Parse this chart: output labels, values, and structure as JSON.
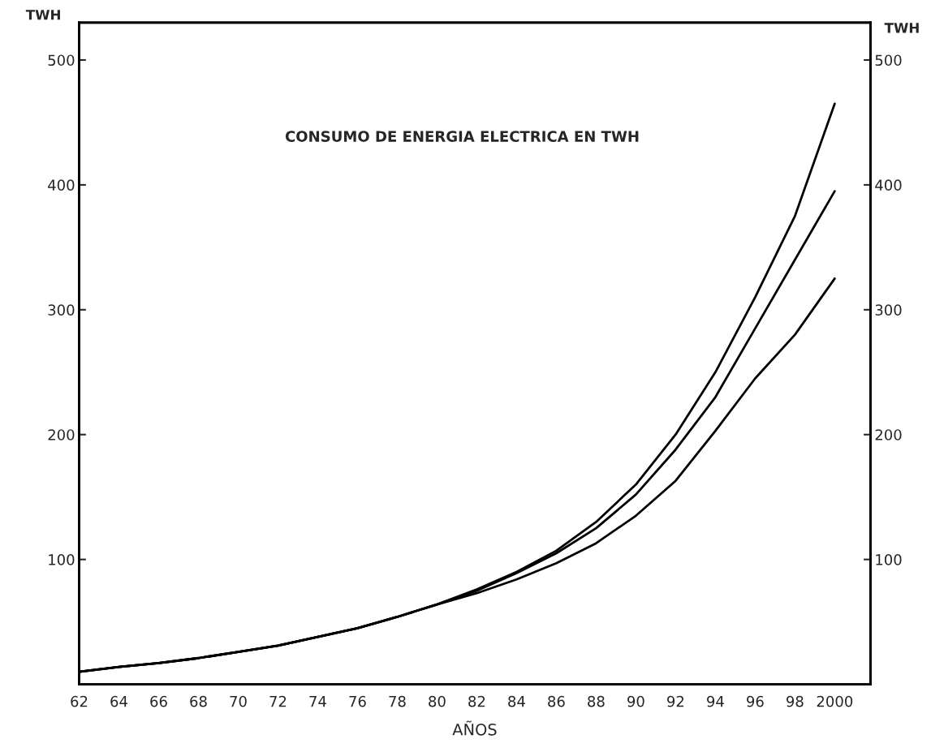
{
  "chart_data": {
    "type": "line",
    "annotations": [
      "CONSUMO DE ENERGIA ELECTRICA EN TWH"
    ],
    "xlabel": "AÑOS",
    "ylabel": "TWH",
    "y2label": "TWH",
    "x": [
      1962,
      1964,
      1966,
      1968,
      1970,
      1972,
      1974,
      1976,
      1978,
      1980,
      1982,
      1984,
      1986,
      1988,
      1990,
      1992,
      1994,
      1996,
      1998,
      2000
    ],
    "series": [
      {
        "color": "#000000",
        "values": [
          10,
          14,
          17,
          21,
          26,
          31,
          38,
          45,
          54,
          64,
          76,
          90,
          107,
          130,
          160,
          200,
          250,
          310,
          375,
          465
        ]
      },
      {
        "color": "#000000",
        "values": [
          10,
          14,
          17,
          21,
          26,
          31,
          38,
          45,
          54,
          64,
          75,
          89,
          105,
          125,
          152,
          188,
          230,
          285,
          340,
          395
        ]
      },
      {
        "color": "#000000",
        "values": [
          10,
          14,
          17,
          21,
          26,
          31,
          38,
          45,
          54,
          64,
          73,
          84,
          97,
          113,
          135,
          163,
          203,
          245,
          280,
          325
        ]
      }
    ],
    "xlim": [
      1962,
      2001.8
    ],
    "ylim": [
      0,
      530
    ],
    "y2lim": [
      0,
      530
    ],
    "xticks": [
      {
        "value": 1962,
        "label": "62"
      },
      {
        "value": 1964,
        "label": "64"
      },
      {
        "value": 1966,
        "label": "66"
      },
      {
        "value": 1968,
        "label": "68"
      },
      {
        "value": 1970,
        "label": "70"
      },
      {
        "value": 1972,
        "label": "72"
      },
      {
        "value": 1974,
        "label": "74"
      },
      {
        "value": 1976,
        "label": "76"
      },
      {
        "value": 1978,
        "label": "78"
      },
      {
        "value": 1980,
        "label": "80"
      },
      {
        "value": 1982,
        "label": "82"
      },
      {
        "value": 1984,
        "label": "84"
      },
      {
        "value": 1986,
        "label": "86"
      },
      {
        "value": 1988,
        "label": "88"
      },
      {
        "value": 1990,
        "label": "90"
      },
      {
        "value": 1992,
        "label": "92"
      },
      {
        "value": 1994,
        "label": "94"
      },
      {
        "value": 1996,
        "label": "96"
      },
      {
        "value": 1998,
        "label": "98"
      },
      2000
    ],
    "yticks": [
      100,
      200,
      300,
      400,
      500
    ],
    "y2ticks": [
      100,
      200,
      300,
      400,
      500
    ],
    "grid": false,
    "legend": false,
    "marker": "none",
    "line_style": "solid"
  }
}
